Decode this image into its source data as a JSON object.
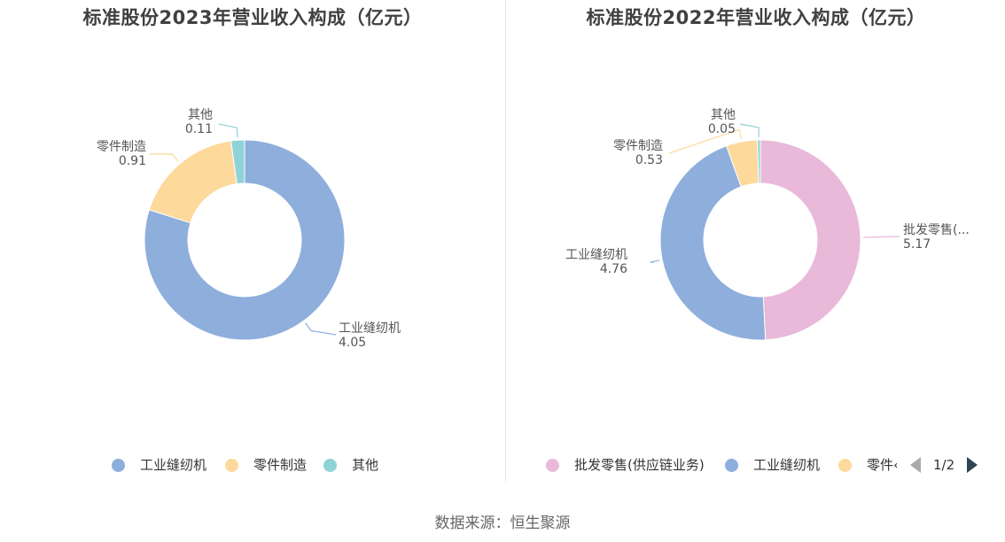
{
  "source_label": "数据来源：恒生聚源",
  "pager_text": "1/2",
  "icons": {
    "prev": "triangle-left-icon",
    "next": "triangle-right-icon"
  },
  "colors": {
    "blue": "#8eaedc",
    "yellow": "#fdd99b",
    "teal": "#8fd3d6",
    "pink": "#e8b9d9"
  },
  "chart_data": [
    {
      "type": "pie",
      "title": "标准股份2023年营业收入构成（亿元）",
      "series": [
        {
          "name": "工业缝纫机",
          "value": 4.05,
          "value_label": "4.05",
          "color": "#8eaedc"
        },
        {
          "name": "零件制造",
          "value": 0.91,
          "value_label": "0.91",
          "color": "#fdd99b"
        },
        {
          "name": "其他",
          "value": 0.11,
          "value_label": "0.11",
          "color": "#8fd3d6"
        }
      ],
      "legend": [
        "工业缝纫机",
        "零件制造",
        "其他"
      ]
    },
    {
      "type": "pie",
      "title": "标准股份2022年营业收入构成（亿元）",
      "series": [
        {
          "name": "批发零售(供应链业务)",
          "short_label": "批发零售(...",
          "value": 5.17,
          "value_label": "5.17",
          "color": "#e8b9d9"
        },
        {
          "name": "工业缝纫机",
          "value": 4.76,
          "value_label": "4.76",
          "color": "#8eaedc"
        },
        {
          "name": "零件制造",
          "value": 0.53,
          "value_label": "0.53",
          "color": "#fdd99b"
        },
        {
          "name": "其他",
          "value": 0.05,
          "value_label": "0.05",
          "color": "#8fd3d6"
        }
      ],
      "legend": [
        "批发零售(供应链业务)",
        "工业缝纫机",
        "零件制造"
      ],
      "legend_visible_text": [
        "批发零售(供应链业务)",
        "工业缝纫机",
        "零件‹"
      ]
    }
  ]
}
